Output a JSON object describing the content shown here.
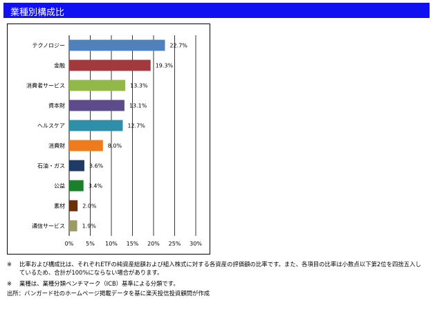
{
  "header": {
    "title": "業種別構成比"
  },
  "colors": {
    "header_bg": "#1010f0",
    "header_text": "#ffffff"
  },
  "chart_data": {
    "type": "bar",
    "orientation": "horizontal",
    "categories": [
      "テクノロジー",
      "金融",
      "消費者サービス",
      "資本財",
      "ヘルスケア",
      "消費財",
      "石油・ガス",
      "公益",
      "素材",
      "通信サービス"
    ],
    "values": [
      22.7,
      19.3,
      13.3,
      13.1,
      12.7,
      8.0,
      3.6,
      3.4,
      2.0,
      1.9
    ],
    "value_labels": [
      "22.7%",
      "19.3%",
      "13.3%",
      "13.1%",
      "12.7%",
      "8.0%",
      "3.6%",
      "3.4%",
      "2.0%",
      "1.9%"
    ],
    "colors": [
      "#4f81bd",
      "#a3393c",
      "#92b84a",
      "#5e4b8c",
      "#2f8fa8",
      "#ee7b1c",
      "#1e3a66",
      "#1b7f2b",
      "#6b3009",
      "#9e9a66"
    ],
    "xlim": [
      0,
      30
    ],
    "xticks": [
      "0%",
      "5%",
      "10%",
      "15%",
      "20%",
      "25%",
      "30%"
    ],
    "grid": true
  },
  "notes": {
    "note1_mark": "※",
    "note1": "比率および構成比は、それぞれETFの純資産総額および組入株式に対する各資産の評価額の比率です。また、各項目の比率は小数点以下第2位を四捨五入しているため、合計が100%にならない場合があります。",
    "note2_mark": "※",
    "note2": "業種は、業種分類ベンチマーク（ICB）基準による分類です。",
    "source": "出所：バンガード社のホームページ掲載データを基に楽天投信投資顧問が作成"
  }
}
